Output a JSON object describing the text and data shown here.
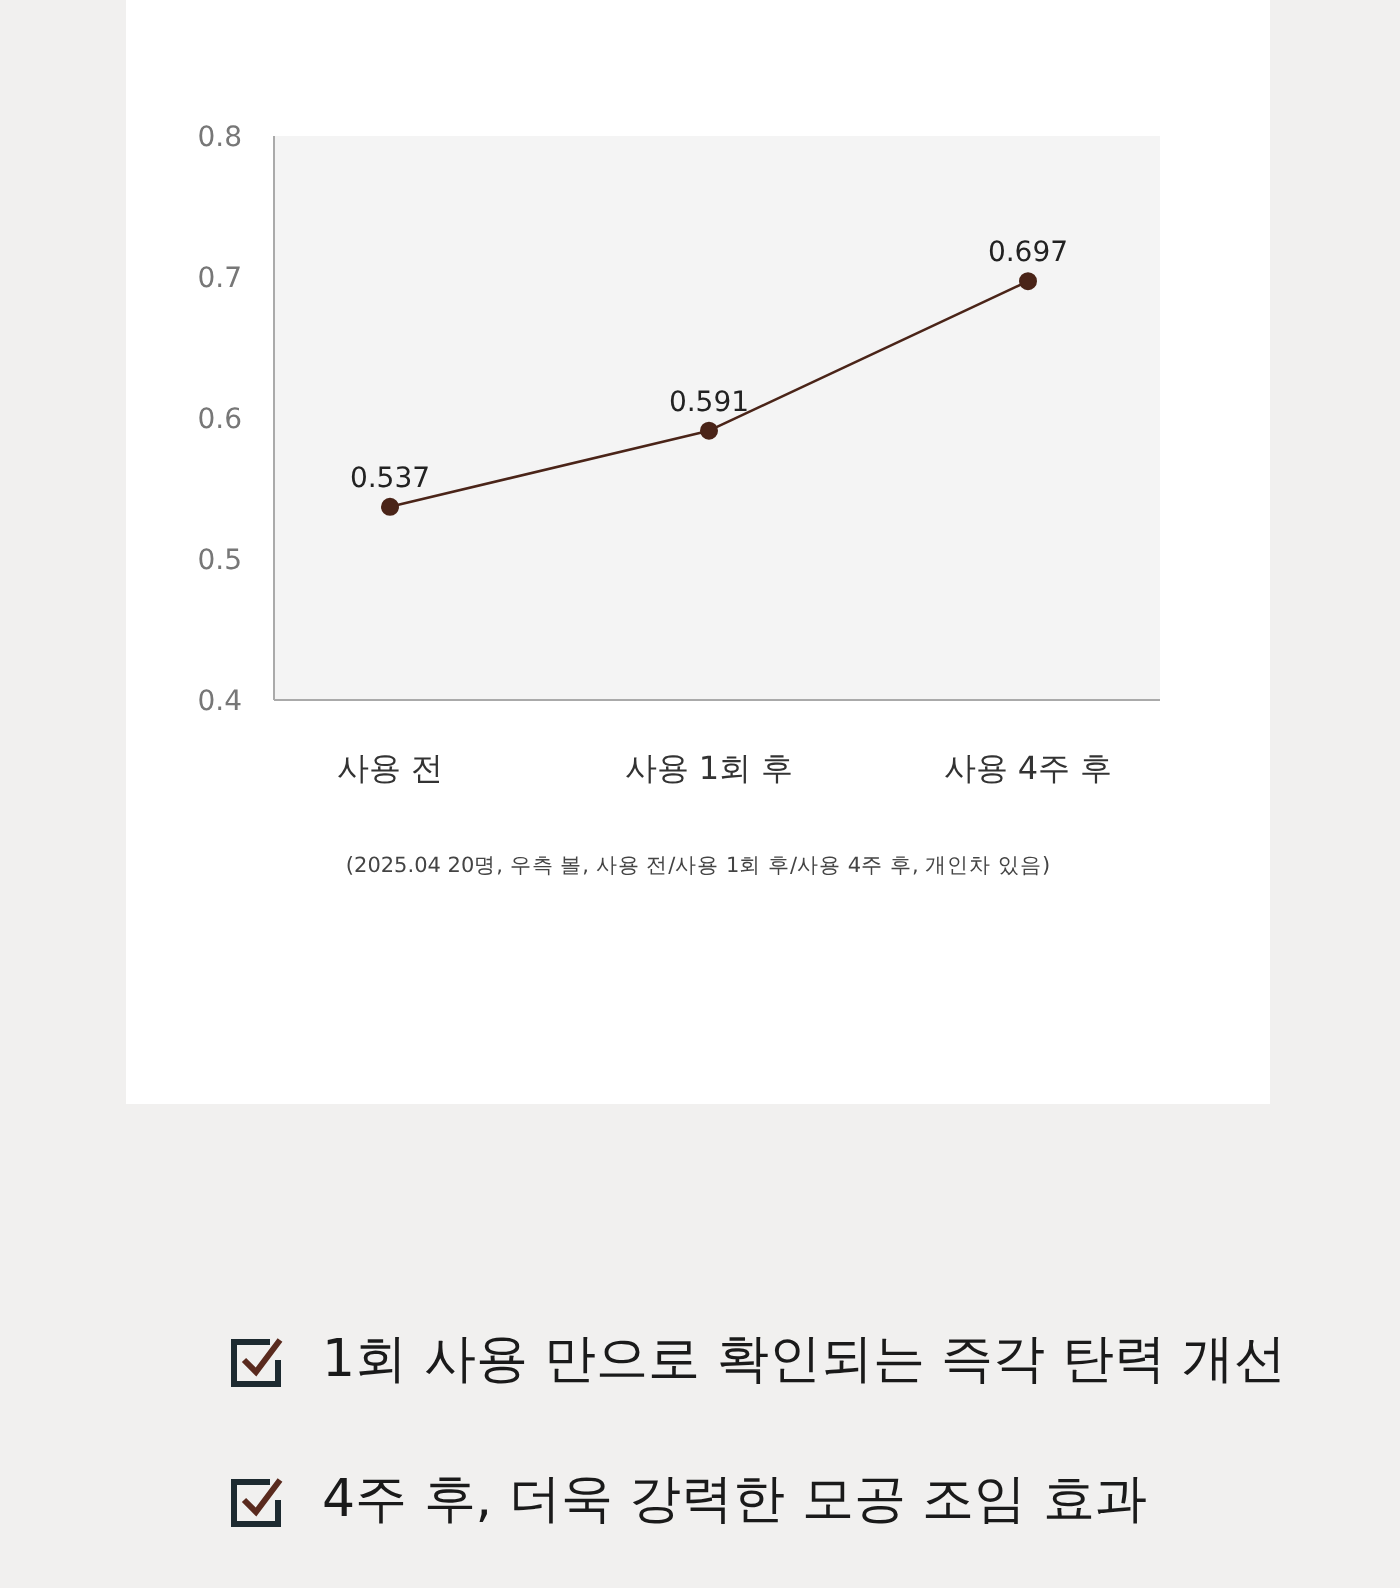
{
  "chart_data": {
    "type": "line",
    "categories": [
      "사용 전",
      "사용 1회 후",
      "사용 4주 후"
    ],
    "series": [
      {
        "color": "#4a2418",
        "values": [
          0.537,
          0.591,
          0.697
        ]
      }
    ],
    "ylim": [
      0.4,
      0.8
    ],
    "yticks": [
      0.4,
      0.5,
      0.6,
      0.7,
      0.8
    ],
    "data_labels": true,
    "grid": false,
    "legend": false,
    "marker": "circle",
    "line_style": "solid",
    "annotations": [
      "(2025.04 20명, 우측 볼, 사용 전/사용 1회 후/사용 4주 후, 개인차 있음)",
      "1회 사용 만으로 확인되는 즉각 탄력 개선",
      "4주 후, 더욱 강력한 모공 조임 효과"
    ]
  }
}
